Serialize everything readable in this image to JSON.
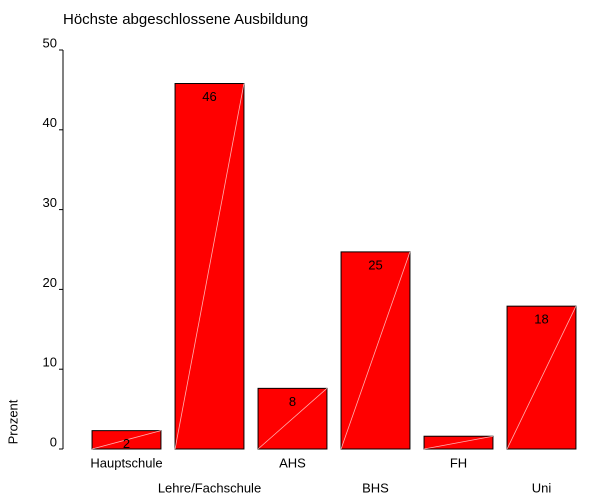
{
  "chart_data": {
    "type": "bar",
    "title": "Höchste abgeschlossene Ausbildung",
    "y_label": "Prozent",
    "categories": [
      "Hauptschule",
      "Lehre/Fachschule",
      "AHS",
      "BHS",
      "FH",
      "Uni"
    ],
    "values": [
      2.3,
      45.8,
      7.6,
      24.7,
      1.6,
      17.9
    ],
    "value_labels": [
      "2",
      "46",
      "8",
      "25",
      null,
      "18"
    ],
    "color": "#ff0000",
    "ylim": [
      0,
      50
    ],
    "yticks": [
      0,
      10,
      20,
      30,
      40,
      50
    ],
    "grid": false
  }
}
